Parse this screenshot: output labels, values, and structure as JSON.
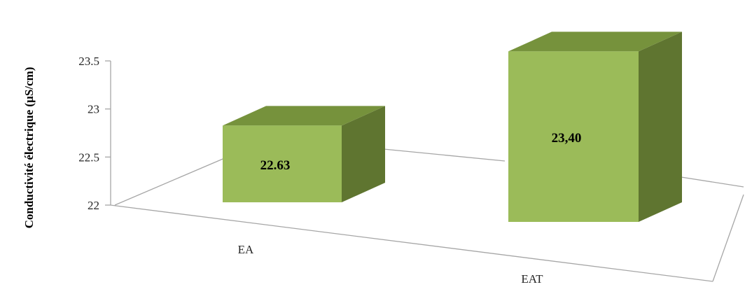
{
  "chart_data": {
    "type": "bar",
    "title": "",
    "xlabel": "",
    "ylabel": "Conductivité électrique (µS/cm)",
    "categories": [
      "EA",
      "EAT"
    ],
    "values": [
      22.63,
      23.4
    ],
    "data_labels": [
      "22.63",
      "23,40"
    ],
    "yticks": [
      "22",
      "22.5",
      "23",
      "23.5"
    ],
    "ylim": [
      22,
      23.5
    ],
    "legend": "none",
    "grid": false,
    "style": "3d-column",
    "colors": {
      "front": "#9bbb59",
      "top": "#76923c",
      "side": "#5f7530",
      "axis": "#a6a6a6"
    }
  }
}
